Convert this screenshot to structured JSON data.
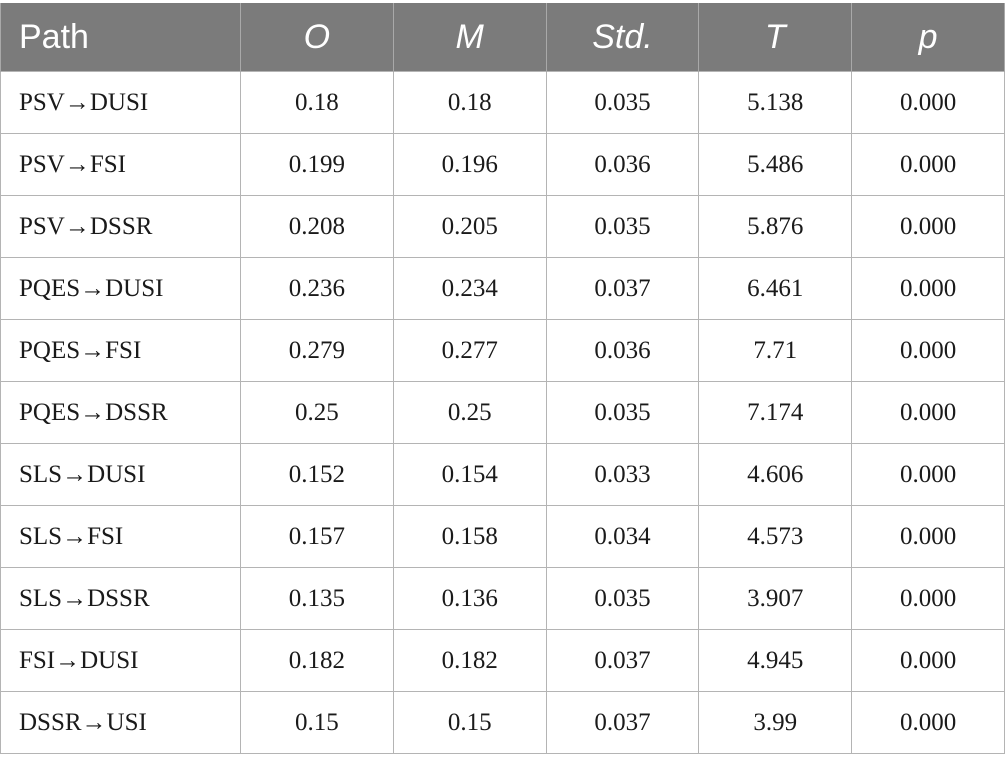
{
  "table": {
    "headers": [
      "Path",
      "O",
      "M",
      "Std.",
      "T",
      "p"
    ],
    "rows": [
      {
        "path": "PSV→DUSI",
        "o": "0.18",
        "m": "0.18",
        "std": "0.035",
        "t": "5.138",
        "p": "0.000"
      },
      {
        "path": "PSV→FSI",
        "o": "0.199",
        "m": "0.196",
        "std": "0.036",
        "t": "5.486",
        "p": "0.000"
      },
      {
        "path": "PSV→DSSR",
        "o": "0.208",
        "m": "0.205",
        "std": "0.035",
        "t": "5.876",
        "p": "0.000"
      },
      {
        "path": "PQES→DUSI",
        "o": "0.236",
        "m": "0.234",
        "std": "0.037",
        "t": "6.461",
        "p": "0.000"
      },
      {
        "path": "PQES→FSI",
        "o": "0.279",
        "m": "0.277",
        "std": "0.036",
        "t": "7.71",
        "p": "0.000"
      },
      {
        "path": "PQES→DSSR",
        "o": "0.25",
        "m": "0.25",
        "std": "0.035",
        "t": "7.174",
        "p": "0.000"
      },
      {
        "path": "SLS→DUSI",
        "o": "0.152",
        "m": "0.154",
        "std": "0.033",
        "t": "4.606",
        "p": "0.000"
      },
      {
        "path": "SLS→FSI",
        "o": "0.157",
        "m": "0.158",
        "std": "0.034",
        "t": "4.573",
        "p": "0.000"
      },
      {
        "path": "SLS→DSSR",
        "o": "0.135",
        "m": "0.136",
        "std": "0.035",
        "t": "3.907",
        "p": "0.000"
      },
      {
        "path": "FSI→DUSI",
        "o": "0.182",
        "m": "0.182",
        "std": "0.037",
        "t": "4.945",
        "p": "0.000"
      },
      {
        "path": "DSSR→USI",
        "o": "0.15",
        "m": "0.15",
        "std": "0.037",
        "t": "3.99",
        "p": "0.000"
      }
    ]
  }
}
